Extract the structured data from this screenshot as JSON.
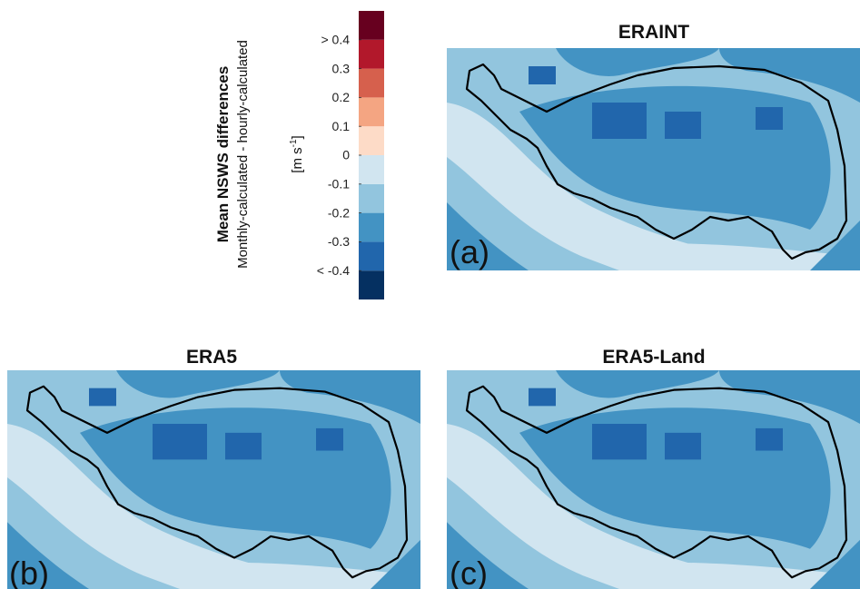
{
  "colorbar": {
    "title": "Mean NSWS differences",
    "subtitle": "Monthly-calculated - hourly-calculated",
    "unit": {
      "base": "[m s",
      "exponent": "-1",
      "close": "]"
    },
    "lim": [
      -0.5,
      0.5
    ],
    "colors": [
      "#053061",
      "#2166ac",
      "#4393c3",
      "#92c5de",
      "#d1e5f0",
      "#fddbc7",
      "#f4a582",
      "#d6604d",
      "#b2182b",
      "#67001f"
    ],
    "ticks": [
      {
        "value": 0.4,
        "label": "> 0.4"
      },
      0.3,
      0.2,
      0.1,
      0,
      -0.1,
      -0.2,
      -0.3,
      {
        "value": -0.4,
        "label": "< -0.4"
      }
    ]
  },
  "panels": [
    {
      "title": "ERAINT",
      "label": "(a)"
    },
    {
      "title": "ERA5",
      "label": "(b)"
    },
    {
      "title": "ERA5-Land",
      "label": "(c)"
    }
  ]
}
